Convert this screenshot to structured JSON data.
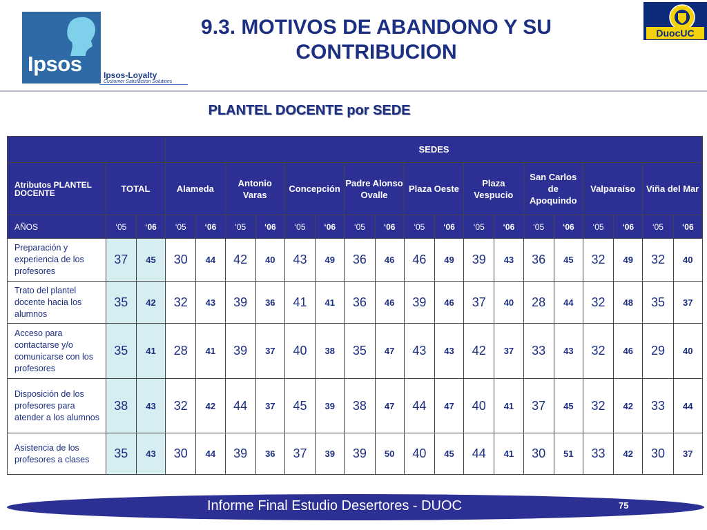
{
  "header": {
    "title": "9.3. MOTIVOS DE ABANDONO Y SU CONTRIBUCION",
    "subtitle": "PLANTEL DOCENTE por SEDE",
    "logo_left": "Ipsos",
    "loyalty_name": "Ipsos-Loyalty",
    "loyalty_tagline": "Customer Satisfaction Solutions",
    "logo_right": "DuocUC"
  },
  "table": {
    "group_header": "SEDES",
    "attr_header": "Atributos PLANTEL DOCENTE",
    "columns": [
      "TOTAL",
      "Alameda",
      "Antonio Varas",
      "Concepción",
      "Padre Alonso Ovalle",
      "Plaza Oeste",
      "Plaza Vespucio",
      "San Carlos de Apoquindo",
      "Valparaíso",
      "Viña del Mar"
    ],
    "years_label": "AÑOS",
    "year_a": "‘05",
    "year_b": "‘06",
    "rows": [
      {
        "label": "Preparación y experiencia de los profesores",
        "values": [
          [
            "37",
            "45"
          ],
          [
            "30",
            "44"
          ],
          [
            "42",
            "40"
          ],
          [
            "43",
            "49"
          ],
          [
            "36",
            "46"
          ],
          [
            "46",
            "49"
          ],
          [
            "39",
            "43"
          ],
          [
            "36",
            "45"
          ],
          [
            "32",
            "49"
          ],
          [
            "32",
            "40"
          ]
        ]
      },
      {
        "label": "Trato del plantel docente hacia los alumnos",
        "values": [
          [
            "35",
            "42"
          ],
          [
            "32",
            "43"
          ],
          [
            "39",
            "36"
          ],
          [
            "41",
            "41"
          ],
          [
            "36",
            "46"
          ],
          [
            "39",
            "46"
          ],
          [
            "37",
            "40"
          ],
          [
            "28",
            "44"
          ],
          [
            "32",
            "48"
          ],
          [
            "35",
            "37"
          ]
        ]
      },
      {
        "label": "Acceso para contactarse y/o comunicarse con los profesores",
        "values": [
          [
            "35",
            "41"
          ],
          [
            "28",
            "41"
          ],
          [
            "39",
            "37"
          ],
          [
            "40",
            "38"
          ],
          [
            "35",
            "47"
          ],
          [
            "43",
            "43"
          ],
          [
            "42",
            "37"
          ],
          [
            "33",
            "43"
          ],
          [
            "32",
            "46"
          ],
          [
            "29",
            "40"
          ]
        ]
      },
      {
        "label": "Disposición de los profesores para atender a los alumnos",
        "values": [
          [
            "38",
            "43"
          ],
          [
            "32",
            "42"
          ],
          [
            "44",
            "37"
          ],
          [
            "45",
            "39"
          ],
          [
            "38",
            "47"
          ],
          [
            "44",
            "47"
          ],
          [
            "40",
            "41"
          ],
          [
            "37",
            "45"
          ],
          [
            "32",
            "42"
          ],
          [
            "33",
            "44"
          ]
        ]
      },
      {
        "label": "Asistencia de los profesores a clases",
        "values": [
          [
            "35",
            "43"
          ],
          [
            "30",
            "44"
          ],
          [
            "39",
            "36"
          ],
          [
            "37",
            "39"
          ],
          [
            "39",
            "50"
          ],
          [
            "40",
            "45"
          ],
          [
            "44",
            "41"
          ],
          [
            "30",
            "51"
          ],
          [
            "33",
            "42"
          ],
          [
            "30",
            "37"
          ]
        ]
      }
    ]
  },
  "footer": {
    "text": "Informe Final Estudio Desertores - DUOC",
    "page": "75"
  },
  "colors": {
    "header_blue": "#2c2f93",
    "title_blue": "#1c2f80",
    "total_fill": "#d6eef1"
  }
}
